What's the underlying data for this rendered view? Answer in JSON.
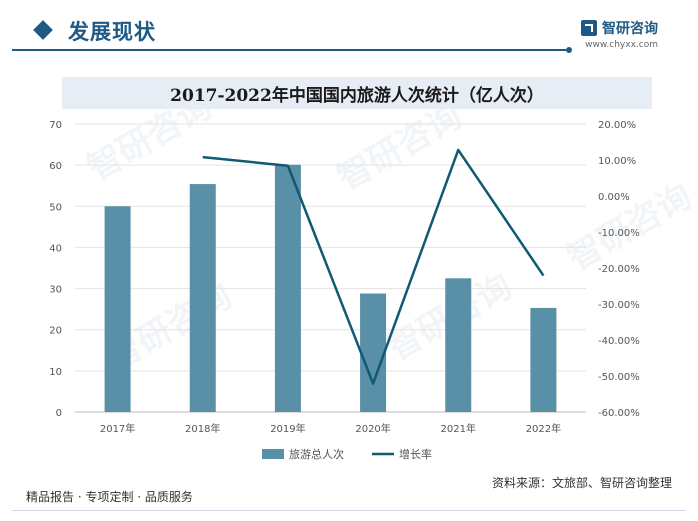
{
  "header": {
    "section_title": "发展现状",
    "brand_name": "智研咨询",
    "brand_url": "www.chyxx.com"
  },
  "chart_data": {
    "type": "bar",
    "title": "2017-2022年中国国内旅游人次统计（亿人次）",
    "categories": [
      "2017年",
      "2018年",
      "2019年",
      "2020年",
      "2021年",
      "2022年"
    ],
    "series": [
      {
        "name": "旅游总人次",
        "type": "bar",
        "axis": "left",
        "color": "#5a8fa8",
        "values": [
          50.0,
          55.4,
          60.1,
          28.8,
          32.5,
          25.3
        ]
      },
      {
        "name": "增长率",
        "type": "line",
        "axis": "right",
        "color": "#0e5a73",
        "values": [
          null,
          10.8,
          8.4,
          -52.1,
          12.8,
          -22.1
        ]
      }
    ],
    "y_left": {
      "min": 0,
      "max": 70,
      "ticks": [
        "0",
        "10",
        "20",
        "30",
        "40",
        "50",
        "60",
        "70"
      ]
    },
    "y_right": {
      "min": -60,
      "max": 20,
      "ticks": [
        "-60.00%",
        "-50.00%",
        "-40.00%",
        "-30.00%",
        "-20.00%",
        "-10.00%",
        "0.00%",
        "10.00%",
        "20.00%"
      ]
    },
    "grid": true,
    "legend_position": "bottom"
  },
  "footer": {
    "left_text": "精品报告 · 专项定制 · 品质服务",
    "source_text": "资料来源：文旅部、智研咨询整理"
  },
  "watermark_text": "智研咨询"
}
